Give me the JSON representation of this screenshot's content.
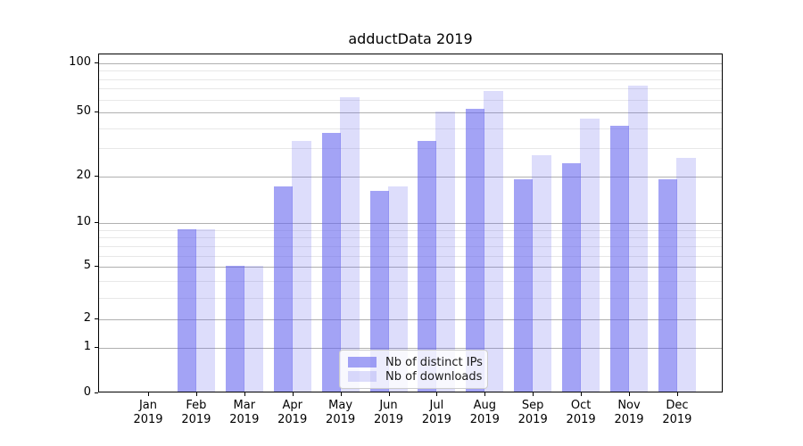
{
  "chart_data": {
    "type": "bar",
    "title": "adductData 2019",
    "categories": [
      "Jan",
      "Feb",
      "Mar",
      "Apr",
      "May",
      "Jun",
      "Jul",
      "Aug",
      "Sep",
      "Oct",
      "Nov",
      "Dec"
    ],
    "category_year": "2019",
    "series": [
      {
        "name": "Nb of distinct IPs",
        "color": "rgba(101,101,239,0.60)",
        "solid_color": "#a2a2f5",
        "values": [
          0,
          9,
          5,
          17,
          37,
          16,
          33,
          52,
          19,
          24,
          41,
          19
        ]
      },
      {
        "name": "Nb of downloads",
        "color": "rgba(101,101,239,0.22)",
        "solid_color": "#ddddfc",
        "values": [
          0,
          9,
          5,
          33,
          61,
          17,
          50,
          67,
          27,
          45,
          72,
          26
        ]
      }
    ],
    "y_major_ticks": [
      0,
      1,
      2,
      5,
      10,
      20,
      50,
      100
    ],
    "y_minor_gridlines": [
      3,
      4,
      6,
      7,
      8,
      9,
      30,
      40,
      60,
      70,
      80,
      90
    ],
    "y_scale": "log-like (log10(1+y), zero shown at baseline)",
    "ylim": [
      0,
      113
    ],
    "grid": "horizontal major and minor gridlines",
    "legend_position": "lower center inside plot",
    "colors": {
      "major_grid": "#b0b0b0",
      "minor_grid": "#e8e8e8",
      "spine": "#000000",
      "background": "#ffffff"
    }
  }
}
